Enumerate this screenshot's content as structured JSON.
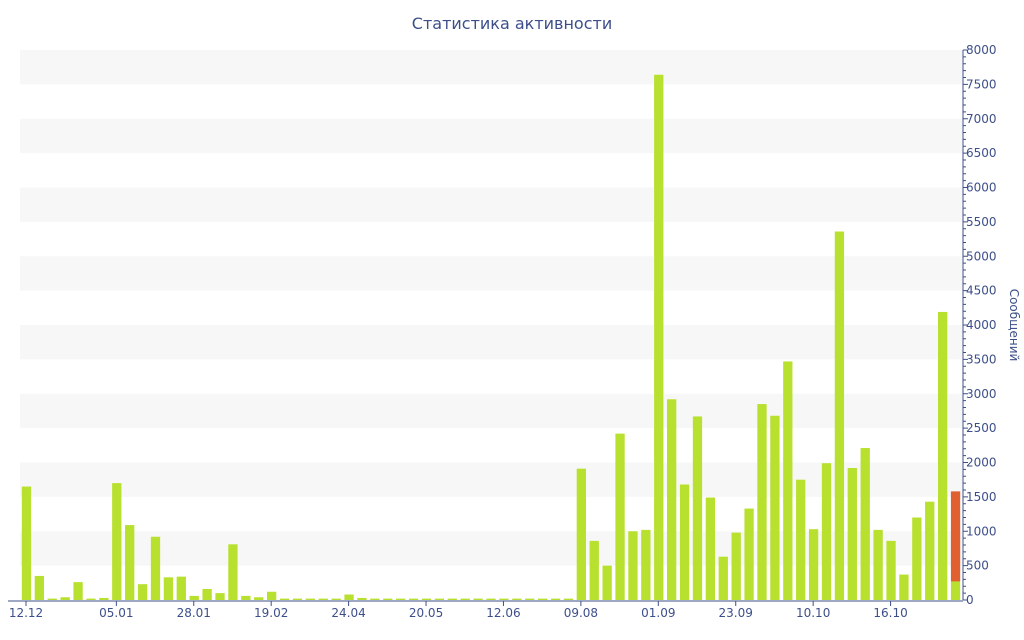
{
  "chart_data": {
    "type": "bar",
    "title": "Статистика активности",
    "ylabel": "Сообщений",
    "xlabel": "",
    "ylim": [
      0,
      8000
    ],
    "y_ticks": [
      0,
      500,
      1000,
      1500,
      2000,
      2500,
      3000,
      3500,
      4000,
      4500,
      5000,
      5500,
      6000,
      6500,
      7000,
      7500,
      8000
    ],
    "y_axis_position": "right",
    "x_tick_labels": [
      {
        "index": 0,
        "label": "12.12"
      },
      {
        "index": 7,
        "label": "05.01"
      },
      {
        "index": 13,
        "label": "28.01"
      },
      {
        "index": 19,
        "label": "19.02"
      },
      {
        "index": 25,
        "label": "24.04"
      },
      {
        "index": 31,
        "label": "20.05"
      },
      {
        "index": 37,
        "label": "12.06"
      },
      {
        "index": 43,
        "label": "09.08"
      },
      {
        "index": 49,
        "label": "01.09"
      },
      {
        "index": 55,
        "label": "23.09"
      },
      {
        "index": 61,
        "label": "10.10"
      },
      {
        "index": 67,
        "label": "16.10"
      }
    ],
    "colors": {
      "bar": "#b8e02e",
      "highlight": "#e06030",
      "band": "#f7f7f7",
      "axis": "#3d4f8a"
    },
    "series": [
      {
        "values": [
          1650,
          350,
          20,
          40,
          260,
          20,
          30,
          1700,
          1090,
          230,
          920,
          330,
          340,
          60,
          160,
          100,
          810,
          60,
          40,
          120,
          20,
          20,
          20,
          20,
          20,
          80,
          30,
          20,
          20,
          20,
          20,
          20,
          20,
          20,
          20,
          20,
          20,
          20,
          20,
          20,
          20,
          20,
          20,
          1910,
          860,
          500,
          2420,
          1000,
          1020,
          7640,
          2920,
          1680,
          2670,
          1490,
          630,
          980,
          1330,
          2850,
          2680,
          3470,
          1750,
          1030,
          1990,
          5360,
          1920,
          2210,
          1020,
          860,
          370,
          1200,
          1430,
          4190,
          270
        ]
      },
      {
        "values": [
          0,
          0,
          0,
          0,
          0,
          0,
          0,
          0,
          0,
          0,
          0,
          0,
          0,
          0,
          0,
          0,
          0,
          0,
          0,
          0,
          0,
          0,
          0,
          0,
          0,
          0,
          0,
          0,
          0,
          0,
          0,
          0,
          0,
          0,
          0,
          0,
          0,
          0,
          0,
          0,
          0,
          0,
          0,
          0,
          0,
          0,
          0,
          0,
          0,
          0,
          0,
          0,
          0,
          0,
          0,
          0,
          0,
          0,
          0,
          0,
          0,
          0,
          0,
          0,
          0,
          0,
          0,
          0,
          0,
          0,
          0,
          0,
          1310
        ]
      }
    ]
  }
}
